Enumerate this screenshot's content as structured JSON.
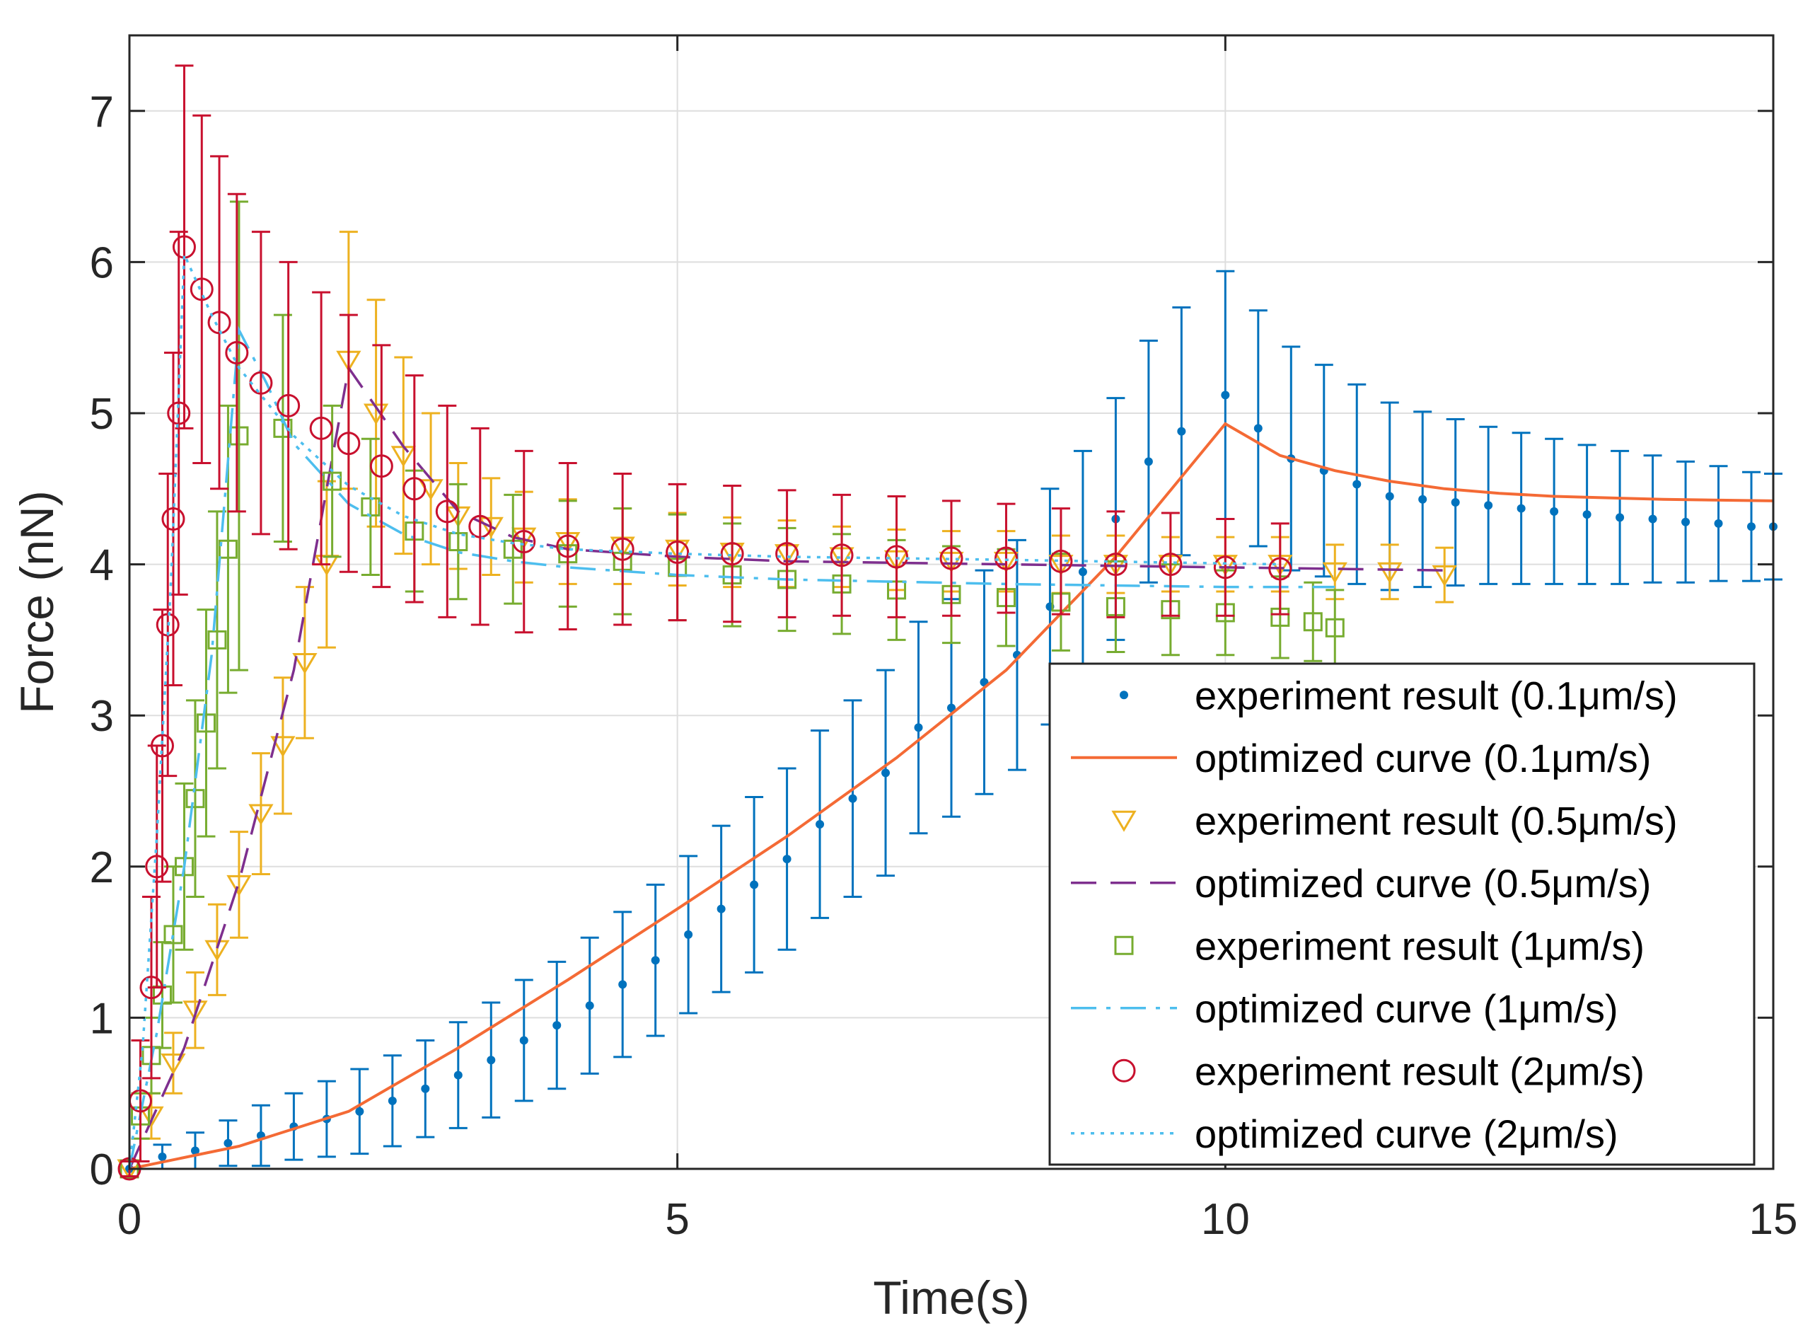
{
  "chart_data": {
    "type": "line",
    "title": "",
    "xlabel": "Time(s)",
    "ylabel": "Force (nN)",
    "xlim": [
      0,
      15
    ],
    "ylim": [
      0,
      7.5
    ],
    "xticks": [
      "0",
      "5",
      "10",
      "15"
    ],
    "yticks": [
      "0",
      "1",
      "2",
      "3",
      "4",
      "5",
      "6",
      "7"
    ],
    "grid": true,
    "legend_position": "bottom-right",
    "colors": {
      "blue": "#0072BD",
      "orange": "#F46A35",
      "yellow": "#EDB120",
      "purple": "#7E2F8E",
      "green": "#77AC30",
      "cyan": "#4DBEEE",
      "red": "#C8102E"
    },
    "series": [
      {
        "name": "experiment result (0.1μm/s)",
        "kind": "experiment",
        "marker": "dot",
        "color": "#0072BD",
        "x": [
          0.0,
          0.3,
          0.6,
          0.9,
          1.2,
          1.5,
          1.8,
          2.1,
          2.4,
          2.7,
          3.0,
          3.3,
          3.6,
          3.9,
          4.2,
          4.5,
          4.8,
          5.1,
          5.4,
          5.7,
          6.0,
          6.3,
          6.6,
          6.9,
          7.2,
          7.5,
          7.8,
          8.1,
          8.4,
          8.7,
          9.0,
          9.3,
          9.6,
          10.0,
          10.3,
          10.6,
          10.9,
          11.2,
          11.5,
          11.8,
          12.1,
          12.4,
          12.7,
          13.0,
          13.3,
          13.6,
          13.9,
          14.2,
          14.5,
          14.8,
          15.0
        ],
        "y": [
          0.0,
          0.08,
          0.12,
          0.17,
          0.22,
          0.28,
          0.33,
          0.38,
          0.45,
          0.53,
          0.62,
          0.72,
          0.85,
          0.95,
          1.08,
          1.22,
          1.38,
          1.55,
          1.72,
          1.88,
          2.05,
          2.28,
          2.45,
          2.62,
          2.92,
          3.05,
          3.22,
          3.4,
          3.72,
          3.95,
          4.3,
          4.68,
          4.88,
          5.12,
          4.9,
          4.7,
          4.62,
          4.53,
          4.45,
          4.43,
          4.41,
          4.39,
          4.37,
          4.35,
          4.33,
          4.31,
          4.3,
          4.28,
          4.27,
          4.25,
          4.25
        ],
        "err": [
          0.05,
          0.08,
          0.12,
          0.15,
          0.2,
          0.22,
          0.25,
          0.28,
          0.3,
          0.32,
          0.35,
          0.38,
          0.4,
          0.42,
          0.45,
          0.48,
          0.5,
          0.52,
          0.55,
          0.58,
          0.6,
          0.62,
          0.65,
          0.68,
          0.7,
          0.72,
          0.74,
          0.76,
          0.78,
          0.8,
          0.8,
          0.8,
          0.82,
          0.82,
          0.78,
          0.74,
          0.7,
          0.66,
          0.62,
          0.58,
          0.55,
          0.52,
          0.5,
          0.48,
          0.46,
          0.44,
          0.42,
          0.4,
          0.38,
          0.36,
          0.35
        ]
      },
      {
        "name": "optimized curve (0.1μm/s)",
        "kind": "fit",
        "line": "solid",
        "color": "#F46A35",
        "x": [
          0.0,
          1.0,
          2.0,
          3.0,
          4.0,
          5.0,
          6.0,
          7.0,
          8.0,
          9.0,
          10.0,
          10.5,
          11.0,
          11.5,
          12.0,
          12.5,
          13.0,
          14.0,
          15.0
        ],
        "y": [
          0.0,
          0.15,
          0.38,
          0.8,
          1.25,
          1.72,
          2.2,
          2.72,
          3.3,
          4.05,
          4.93,
          4.72,
          4.62,
          4.55,
          4.5,
          4.47,
          4.45,
          4.43,
          4.42
        ]
      },
      {
        "name": "experiment result (0.5μm/s)",
        "kind": "experiment",
        "marker": "triangle-down",
        "color": "#EDB120",
        "x": [
          0.0,
          0.2,
          0.4,
          0.6,
          0.8,
          1.0,
          1.2,
          1.4,
          1.6,
          1.8,
          2.0,
          2.25,
          2.5,
          2.75,
          3.0,
          3.3,
          3.6,
          4.0,
          4.5,
          5.0,
          5.5,
          6.0,
          6.5,
          7.0,
          7.5,
          8.0,
          8.5,
          9.0,
          9.5,
          10.0,
          10.5,
          11.0,
          11.5,
          12.0
        ],
        "y": [
          0.0,
          0.35,
          0.7,
          1.05,
          1.45,
          1.88,
          2.35,
          2.8,
          3.35,
          4.0,
          5.35,
          5.0,
          4.72,
          4.5,
          4.32,
          4.25,
          4.18,
          4.15,
          4.12,
          4.1,
          4.08,
          4.07,
          4.05,
          4.03,
          4.02,
          4.02,
          4.0,
          4.0,
          4.0,
          4.0,
          4.0,
          3.95,
          3.95,
          3.93
        ],
        "err": [
          0.05,
          0.15,
          0.2,
          0.25,
          0.3,
          0.35,
          0.4,
          0.45,
          0.5,
          0.55,
          0.85,
          0.75,
          0.65,
          0.5,
          0.35,
          0.32,
          0.3,
          0.28,
          0.25,
          0.24,
          0.23,
          0.22,
          0.2,
          0.2,
          0.2,
          0.2,
          0.19,
          0.19,
          0.18,
          0.18,
          0.18,
          0.18,
          0.18,
          0.18
        ]
      },
      {
        "name": "optimized curve (0.5μm/s)",
        "kind": "fit",
        "line": "dashed",
        "color": "#7E2F8E",
        "x": [
          0.0,
          0.5,
          1.0,
          1.5,
          2.0,
          2.5,
          3.0,
          3.5,
          4.0,
          5.0,
          6.0,
          8.0,
          10.0,
          12.0
        ],
        "y": [
          0.0,
          0.8,
          1.9,
          3.3,
          5.3,
          4.78,
          4.35,
          4.18,
          4.1,
          4.05,
          4.02,
          4.0,
          3.98,
          3.96
        ]
      },
      {
        "name": "experiment result (1μm/s)",
        "kind": "experiment",
        "marker": "square",
        "color": "#77AC30",
        "x": [
          0.0,
          0.1,
          0.2,
          0.3,
          0.4,
          0.5,
          0.6,
          0.7,
          0.8,
          0.9,
          1.0,
          1.4,
          1.85,
          2.2,
          2.6,
          3.0,
          3.5,
          4.0,
          4.5,
          5.0,
          5.5,
          6.0,
          6.5,
          7.0,
          7.5,
          8.0,
          8.5,
          9.0,
          9.5,
          10.0,
          10.5,
          10.8,
          11.0
        ],
        "y": [
          0.0,
          0.35,
          0.75,
          1.15,
          1.55,
          2.0,
          2.45,
          2.95,
          3.5,
          4.1,
          4.85,
          4.9,
          4.55,
          4.38,
          4.22,
          4.15,
          4.1,
          4.07,
          4.02,
          3.98,
          3.93,
          3.9,
          3.87,
          3.83,
          3.8,
          3.78,
          3.75,
          3.72,
          3.7,
          3.68,
          3.65,
          3.62,
          3.58
        ],
        "err": [
          0.05,
          0.15,
          0.25,
          0.35,
          0.45,
          0.55,
          0.65,
          0.75,
          0.85,
          0.95,
          1.55,
          0.75,
          0.5,
          0.45,
          0.4,
          0.38,
          0.36,
          0.35,
          0.35,
          0.35,
          0.34,
          0.34,
          0.33,
          0.33,
          0.32,
          0.32,
          0.32,
          0.3,
          0.3,
          0.28,
          0.27,
          0.26,
          0.25
        ]
      },
      {
        "name": "optimized curve (1μm/s)",
        "kind": "fit",
        "line": "dashdot",
        "color": "#4DBEEE",
        "x": [
          0.0,
          0.25,
          0.5,
          0.75,
          1.0,
          1.25,
          1.5,
          2.0,
          2.5,
          3.0,
          3.5,
          4.0,
          5.0,
          6.0,
          8.0,
          10.0,
          11.0
        ],
        "y": [
          0.0,
          0.9,
          2.0,
          3.4,
          5.55,
          5.2,
          4.8,
          4.4,
          4.2,
          4.08,
          4.02,
          3.98,
          3.93,
          3.9,
          3.87,
          3.85,
          3.85
        ]
      },
      {
        "name": "experiment result (2μm/s)",
        "kind": "experiment",
        "marker": "circle",
        "color": "#C8102E",
        "x": [
          0.0,
          0.1,
          0.2,
          0.25,
          0.3,
          0.35,
          0.4,
          0.45,
          0.5,
          0.66,
          0.82,
          0.98,
          1.2,
          1.45,
          1.75,
          2.0,
          2.3,
          2.6,
          2.9,
          3.2,
          3.6,
          4.0,
          4.5,
          5.0,
          5.5,
          6.0,
          6.5,
          7.0,
          7.5,
          8.0,
          8.5,
          9.0,
          9.5,
          10.0,
          10.5
        ],
        "y": [
          0.0,
          0.45,
          1.2,
          2.0,
          2.8,
          3.6,
          4.3,
          5.0,
          6.1,
          5.82,
          5.6,
          5.4,
          5.2,
          5.05,
          4.9,
          4.8,
          4.65,
          4.5,
          4.35,
          4.25,
          4.15,
          4.12,
          4.1,
          4.08,
          4.07,
          4.07,
          4.06,
          4.05,
          4.04,
          4.04,
          4.02,
          4.0,
          4.0,
          3.98,
          3.97
        ],
        "err": [
          0.05,
          0.4,
          0.6,
          0.8,
          0.9,
          1.0,
          1.1,
          1.2,
          1.2,
          1.15,
          1.1,
          1.05,
          1.0,
          0.95,
          0.9,
          0.85,
          0.8,
          0.75,
          0.7,
          0.65,
          0.6,
          0.55,
          0.5,
          0.45,
          0.45,
          0.42,
          0.4,
          0.4,
          0.38,
          0.36,
          0.35,
          0.35,
          0.34,
          0.32,
          0.3
        ]
      },
      {
        "name": "optimized curve (2μm/s)",
        "kind": "fit",
        "line": "dotted",
        "color": "#4DBEEE",
        "x": [
          0.0,
          0.12,
          0.25,
          0.38,
          0.5,
          0.75,
          1.0,
          1.5,
          2.0,
          2.5,
          3.0,
          3.5,
          4.0,
          5.0,
          6.0,
          8.0,
          10.5
        ],
        "y": [
          0.0,
          0.8,
          2.2,
          3.9,
          6.05,
          5.65,
          5.3,
          4.85,
          4.52,
          4.32,
          4.2,
          4.14,
          4.1,
          4.07,
          4.05,
          4.03,
          4.0
        ]
      }
    ]
  }
}
